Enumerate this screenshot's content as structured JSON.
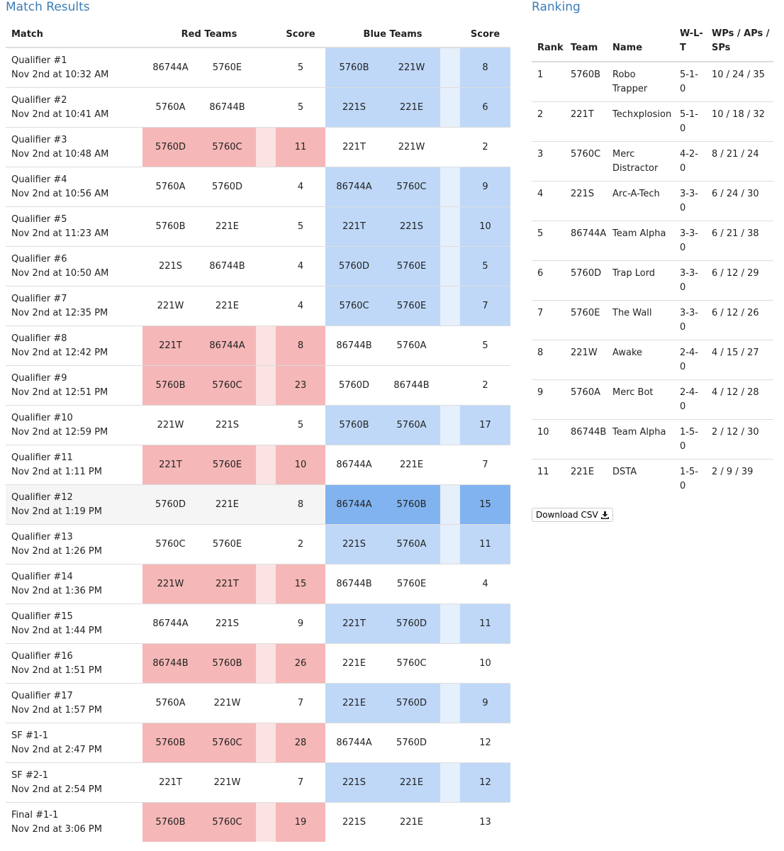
{
  "match_results": {
    "title": "Match Results",
    "headers": {
      "match": "Match",
      "red_teams": "Red Teams",
      "red_score": "Score",
      "blue_teams": "Blue Teams",
      "blue_score": "Score"
    },
    "rows": [
      {
        "match": "Qualifier #1",
        "time": "Nov 2nd at 10:32 AM",
        "red": [
          "86744A",
          "5760E"
        ],
        "red_score": 5,
        "blue": [
          "5760B",
          "221W"
        ],
        "blue_score": 8
      },
      {
        "match": "Qualifier #2",
        "time": "Nov 2nd at 10:41 AM",
        "red": [
          "5760A",
          "86744B"
        ],
        "red_score": 5,
        "blue": [
          "221S",
          "221E"
        ],
        "blue_score": 6
      },
      {
        "match": "Qualifier #3",
        "time": "Nov 2nd at 10:48 AM",
        "red": [
          "5760D",
          "5760C"
        ],
        "red_score": 11,
        "blue": [
          "221T",
          "221W"
        ],
        "blue_score": 2
      },
      {
        "match": "Qualifier #4",
        "time": "Nov 2nd at 10:56 AM",
        "red": [
          "5760A",
          "5760D"
        ],
        "red_score": 4,
        "blue": [
          "86744A",
          "5760C"
        ],
        "blue_score": 9
      },
      {
        "match": "Qualifier #5",
        "time": "Nov 2nd at 11:23 AM",
        "red": [
          "5760B",
          "221E"
        ],
        "red_score": 5,
        "blue": [
          "221T",
          "221S"
        ],
        "blue_score": 10
      },
      {
        "match": "Qualifier #6",
        "time": "Nov 2nd at 10:50 AM",
        "red": [
          "221S",
          "86744B"
        ],
        "red_score": 4,
        "blue": [
          "5760D",
          "5760E"
        ],
        "blue_score": 5
      },
      {
        "match": "Qualifier #7",
        "time": "Nov 2nd at 12:35 PM",
        "red": [
          "221W",
          "221E"
        ],
        "red_score": 4,
        "blue": [
          "5760C",
          "5760E"
        ],
        "blue_score": 7
      },
      {
        "match": "Qualifier #8",
        "time": "Nov 2nd at 12:42 PM",
        "red": [
          "221T",
          "86744A"
        ],
        "red_score": 8,
        "blue": [
          "86744B",
          "5760A"
        ],
        "blue_score": 5
      },
      {
        "match": "Qualifier #9",
        "time": "Nov 2nd at 12:51 PM",
        "red": [
          "5760B",
          "5760C"
        ],
        "red_score": 23,
        "blue": [
          "5760D",
          "86744B"
        ],
        "blue_score": 2
      },
      {
        "match": "Qualifier #10",
        "time": "Nov 2nd at 12:59 PM",
        "red": [
          "221W",
          "221S"
        ],
        "red_score": 5,
        "blue": [
          "5760B",
          "5760A"
        ],
        "blue_score": 17
      },
      {
        "match": "Qualifier #11",
        "time": "Nov 2nd at 1:11 PM",
        "red": [
          "221T",
          "5760E"
        ],
        "red_score": 10,
        "blue": [
          "86744A",
          "221E"
        ],
        "blue_score": 7
      },
      {
        "match": "Qualifier #12",
        "time": "Nov 2nd at 1:19 PM",
        "red": [
          "5760D",
          "221E"
        ],
        "red_score": 8,
        "blue": [
          "86744A",
          "5760B"
        ],
        "blue_score": 15
      },
      {
        "match": "Qualifier #13",
        "time": "Nov 2nd at 1:26 PM",
        "red": [
          "5760C",
          "5760E"
        ],
        "red_score": 2,
        "blue": [
          "221S",
          "5760A"
        ],
        "blue_score": 11
      },
      {
        "match": "Qualifier #14",
        "time": "Nov 2nd at 1:36 PM",
        "red": [
          "221W",
          "221T"
        ],
        "red_score": 15,
        "blue": [
          "86744B",
          "5760E"
        ],
        "blue_score": 4
      },
      {
        "match": "Qualifier #15",
        "time": "Nov 2nd at 1:44 PM",
        "red": [
          "86744A",
          "221S"
        ],
        "red_score": 9,
        "blue": [
          "221T",
          "5760D"
        ],
        "blue_score": 11
      },
      {
        "match": "Qualifier #16",
        "time": "Nov 2nd at 1:51 PM",
        "red": [
          "86744B",
          "5760B"
        ],
        "red_score": 26,
        "blue": [
          "221E",
          "5760C"
        ],
        "blue_score": 10
      },
      {
        "match": "Qualifier #17",
        "time": "Nov 2nd at 1:57 PM",
        "red": [
          "5760A",
          "221W"
        ],
        "red_score": 7,
        "blue": [
          "221E",
          "5760D"
        ],
        "blue_score": 9
      },
      {
        "match": "SF #1-1",
        "time": "Nov 2nd at 2:47 PM",
        "red": [
          "5760B",
          "5760C"
        ],
        "red_score": 28,
        "blue": [
          "86744A",
          "5760D"
        ],
        "blue_score": 12
      },
      {
        "match": "SF #2-1",
        "time": "Nov 2nd at 2:54 PM",
        "red": [
          "221T",
          "221W"
        ],
        "red_score": 7,
        "blue": [
          "221S",
          "221E"
        ],
        "blue_score": 12
      },
      {
        "match": "Final #1-1",
        "time": "Nov 2nd at 3:06 PM",
        "red": [
          "5760B",
          "5760C"
        ],
        "red_score": 19,
        "blue": [
          "221S",
          "221E"
        ],
        "blue_score": 13
      }
    ]
  },
  "ranking": {
    "title": "Ranking",
    "headers": [
      "Rank",
      "Team",
      "Name",
      "W-L-T",
      "WPs / APs / SPs"
    ],
    "rows": [
      [
        1,
        "5760B",
        "Robo Trapper",
        "5-1-0",
        "10 / 24 / 35"
      ],
      [
        2,
        "221T",
        "Techxplosion",
        "5-1-0",
        "10 / 18 / 32"
      ],
      [
        3,
        "5760C",
        "Merc Distractor",
        "4-2-0",
        "8 / 21 / 24"
      ],
      [
        4,
        "221S",
        "Arc-A-Tech",
        "3-3-0",
        "6 / 24 / 30"
      ],
      [
        5,
        "86744A",
        "Team Alpha",
        "3-3-0",
        "6 / 21 / 38"
      ],
      [
        6,
        "5760D",
        "Trap Lord",
        "3-3-0",
        "6 / 12 / 29"
      ],
      [
        7,
        "5760E",
        "The Wall",
        "3-3-0",
        "6 / 12 / 26"
      ],
      [
        8,
        "221W",
        "Awake",
        "2-4-0",
        "4 / 15 / 27"
      ],
      [
        9,
        "5760A",
        "Merc Bot",
        "2-4-0",
        "4 / 12 / 28"
      ],
      [
        10,
        "86744B",
        "Team Alpha",
        "1-5-0",
        "2 / 12 / 30"
      ],
      [
        11,
        "221E",
        "DSTA",
        "1-5-0",
        "2 / 9 / 39"
      ]
    ]
  },
  "download_button": "Download CSV"
}
